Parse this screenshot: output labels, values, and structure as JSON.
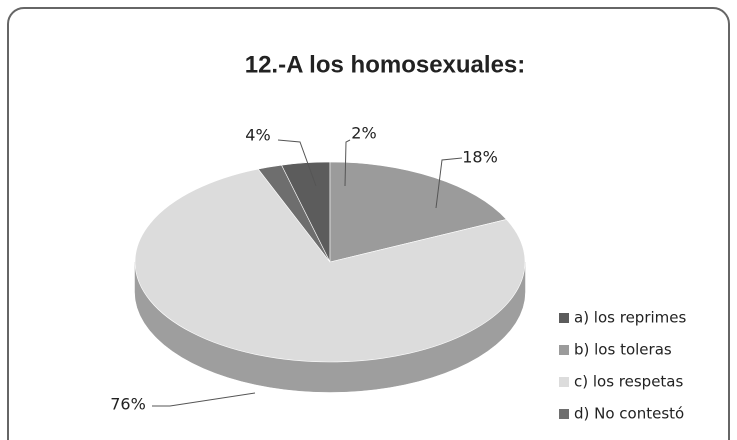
{
  "chart_data": {
    "type": "pie3d",
    "title": "12.-A los homosexuales:",
    "categories": [
      "a) los reprimes",
      "b)  los toleras",
      "c) los respetas",
      "d)  No contestó"
    ],
    "values": [
      4,
      18,
      76,
      2
    ],
    "value_labels": [
      "4%",
      "18%",
      "76%",
      "2%"
    ],
    "colors": [
      "#5c5c5c",
      "#9b9b9b",
      "#dcdcdc",
      "#6e6e6e"
    ],
    "legend": "right"
  }
}
